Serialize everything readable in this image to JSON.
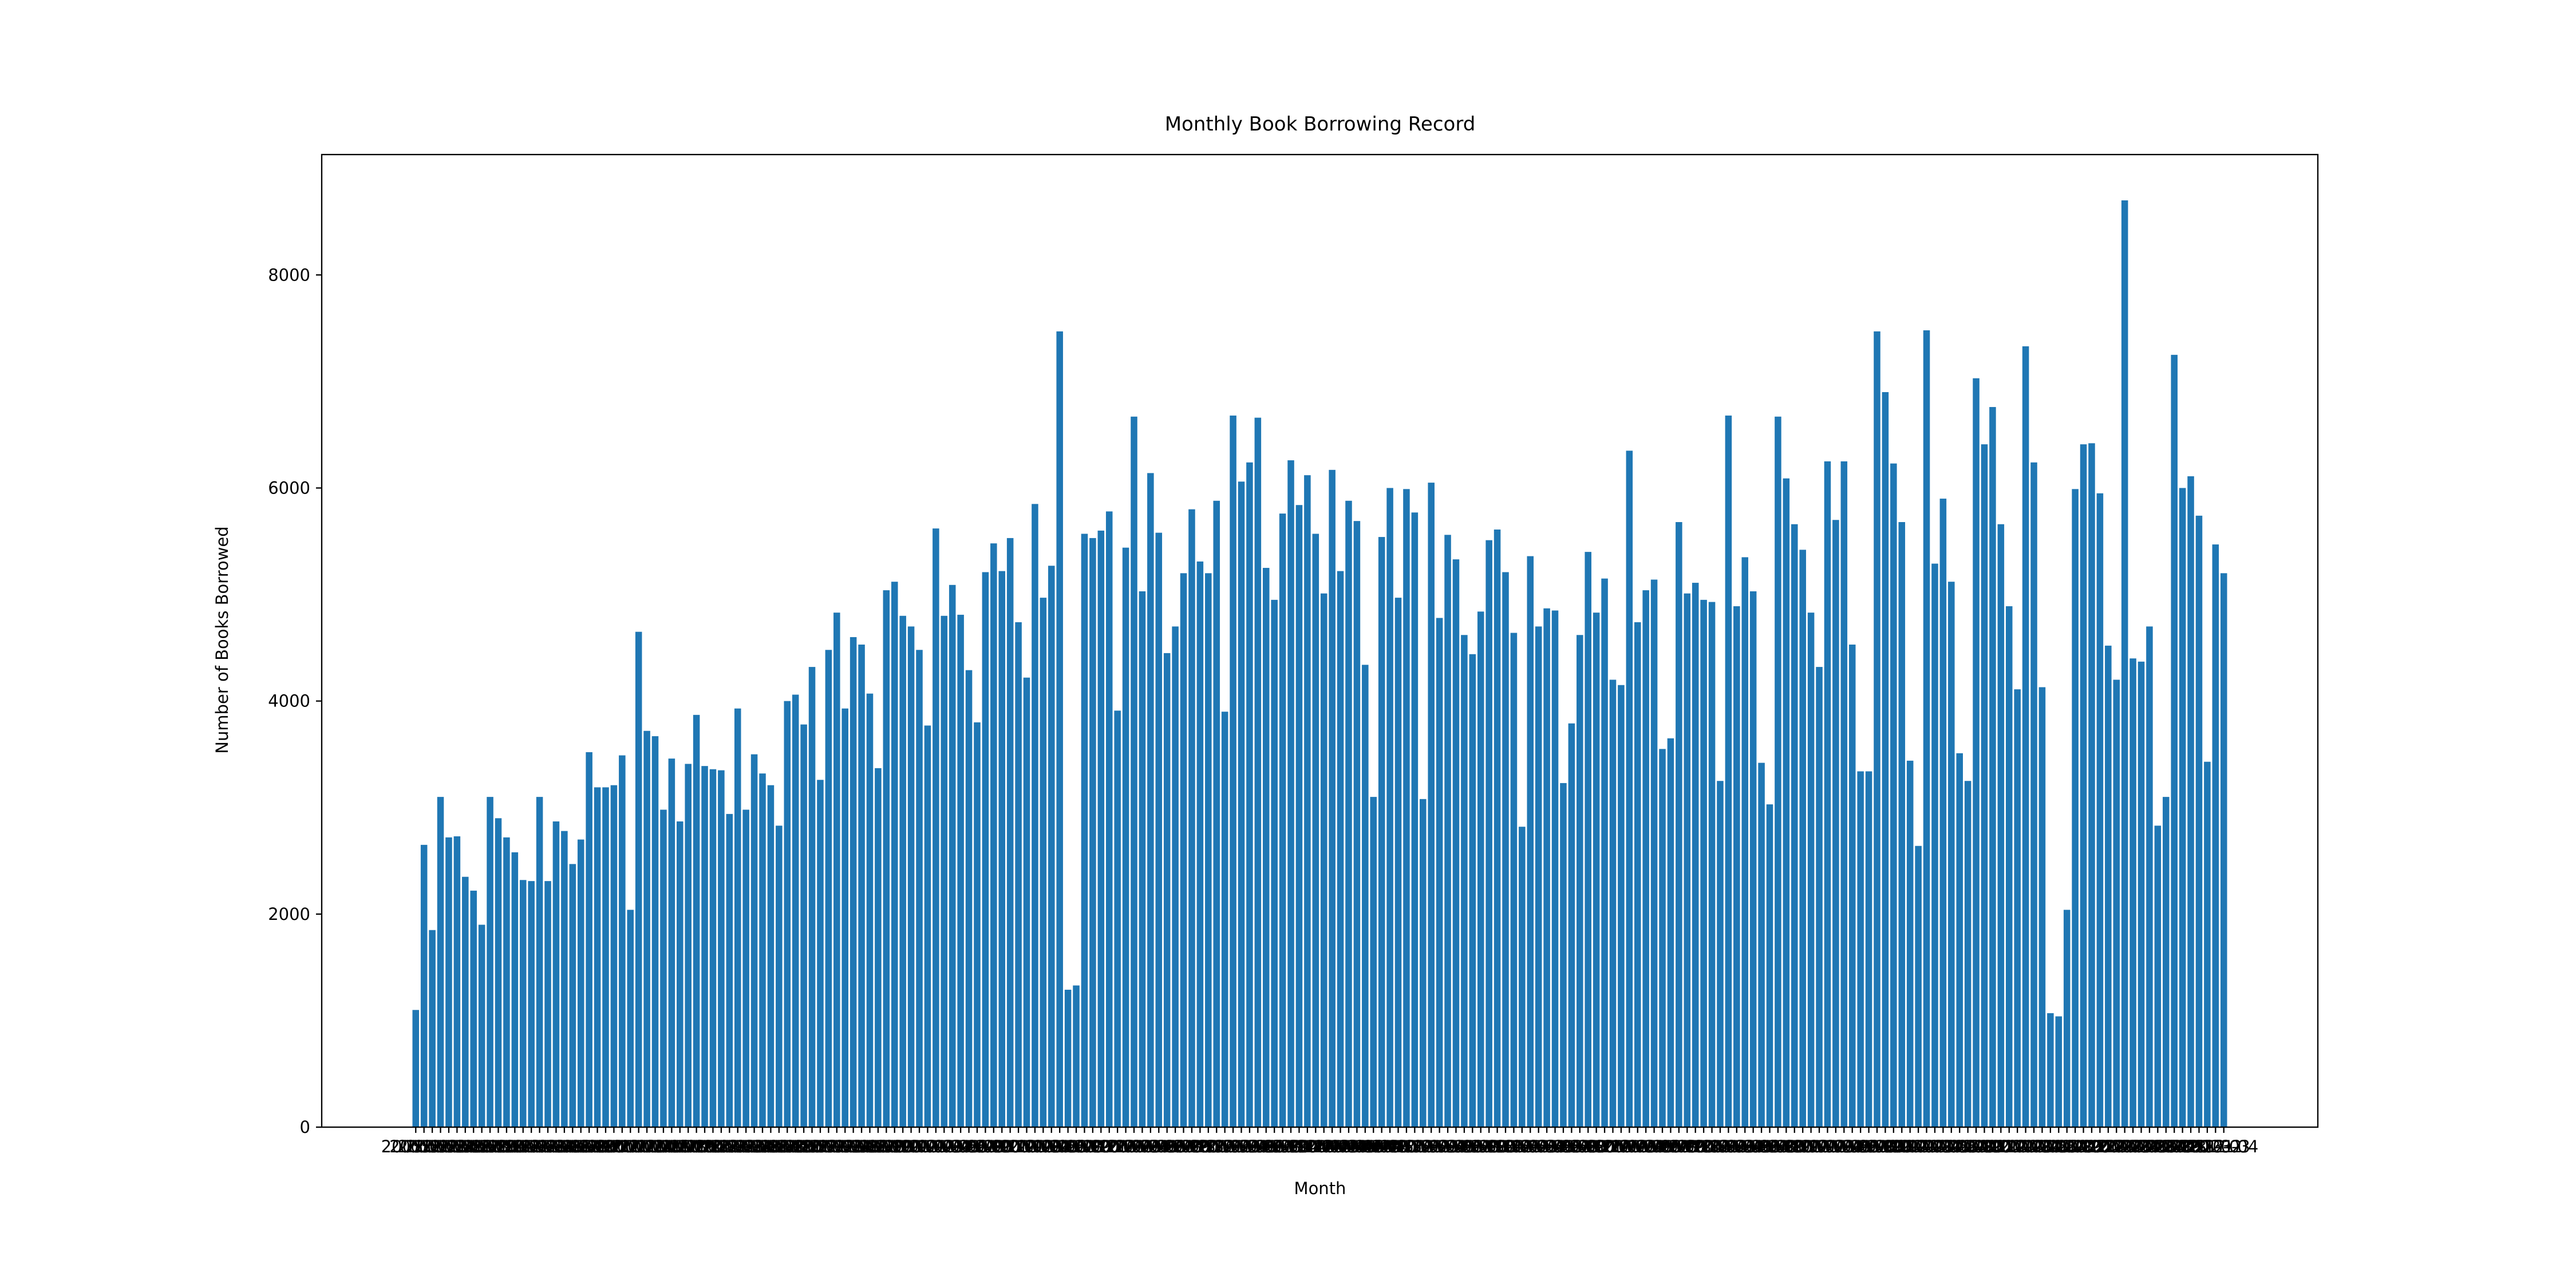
{
  "chart_data": {
    "type": "bar",
    "title": "Monthly Book Borrowing Record",
    "xlabel": "Month",
    "ylabel": "Number of Books Borrowed",
    "color": "#1f77b4",
    "categories": [
      "2005-01",
      "2005-02",
      "2005-03",
      "2005-04",
      "2005-05",
      "2005-06",
      "2005-07",
      "2005-08",
      "2005-09",
      "2005-10",
      "2005-11",
      "2005-12",
      "2006-01",
      "2006-02",
      "2006-03",
      "2006-04",
      "2006-05",
      "2006-06",
      "2006-07",
      "2006-08",
      "2006-09",
      "2006-10",
      "2006-11",
      "2006-12",
      "2007-01",
      "2007-02",
      "2007-03",
      "2007-04",
      "2007-05",
      "2007-06",
      "2007-07",
      "2007-08",
      "2007-09",
      "2007-10",
      "2007-11",
      "2007-12",
      "2008-01",
      "2008-02",
      "2008-03",
      "2008-04",
      "2008-05",
      "2008-06",
      "2008-07",
      "2008-08",
      "2008-09",
      "2008-10",
      "2008-11",
      "2008-12",
      "2009-01",
      "2009-02",
      "2009-03",
      "2009-04",
      "2009-05",
      "2009-06",
      "2009-07",
      "2009-08",
      "2009-09",
      "2009-10",
      "2009-11",
      "2009-12",
      "2010-01",
      "2010-02",
      "2010-03",
      "2010-04",
      "2010-05",
      "2010-06",
      "2010-07",
      "2010-08",
      "2010-09",
      "2010-10",
      "2010-11",
      "2010-12",
      "2011-01",
      "2011-02",
      "2011-03",
      "2011-04",
      "2011-05",
      "2011-06",
      "2011-07",
      "2011-08",
      "2011-09",
      "2011-10",
      "2011-11",
      "2011-12",
      "2012-01",
      "2012-02",
      "2012-03",
      "2012-04",
      "2012-05",
      "2012-06",
      "2012-07",
      "2012-08",
      "2012-09",
      "2012-10",
      "2012-11",
      "2012-12",
      "2013-01",
      "2013-02",
      "2013-03",
      "2013-04",
      "2013-05",
      "2013-06",
      "2013-07",
      "2013-08",
      "2013-09",
      "2013-10",
      "2013-11",
      "2013-12",
      "2014-01",
      "2014-02",
      "2014-03",
      "2014-04",
      "2014-05",
      "2014-06",
      "2014-07",
      "2014-08",
      "2014-09",
      "2014-10",
      "2014-11",
      "2014-12",
      "2015-01",
      "2015-02",
      "2015-03",
      "2015-04",
      "2015-05",
      "2015-06",
      "2015-07",
      "2015-08",
      "2015-09",
      "2015-10",
      "2015-11",
      "2015-12",
      "2016-01",
      "2016-02",
      "2016-03",
      "2016-04",
      "2016-05",
      "2016-06",
      "2016-07",
      "2016-08",
      "2016-09",
      "2016-10",
      "2016-11",
      "2016-12",
      "2017-01",
      "2017-02",
      "2017-03",
      "2017-04",
      "2017-05",
      "2017-06",
      "2017-07",
      "2017-08",
      "2017-09",
      "2017-10",
      "2017-11",
      "2017-12",
      "2018-01",
      "2018-02",
      "2018-03",
      "2018-04",
      "2018-05",
      "2018-06",
      "2018-07",
      "2018-08",
      "2018-09",
      "2018-10",
      "2018-11",
      "2018-12",
      "2019-01",
      "2019-02",
      "2019-03",
      "2019-04",
      "2019-05",
      "2019-06",
      "2019-07",
      "2019-08",
      "2019-09",
      "2019-10",
      "2019-11",
      "2019-12",
      "2020-01",
      "2020-02",
      "2020-03",
      "2020-04",
      "2020-05",
      "2020-06",
      "2020-07",
      "2020-08",
      "2020-09",
      "2020-10",
      "2020-11",
      "2020-12",
      "2021-01",
      "2021-02",
      "2021-03",
      "2021-04",
      "2021-05",
      "2021-06",
      "2021-07",
      "2021-08",
      "2021-09",
      "2021-10",
      "2021-11",
      "2021-12",
      "2022-01",
      "2022-02",
      "2022-03",
      "2022-04",
      "2022-05",
      "2022-06",
      "2022-07",
      "2022-08",
      "2022-09",
      "2022-10",
      "2022-11",
      "2022-12",
      "2023-01",
      "2023-02",
      "2023-03",
      "2023-04"
    ],
    "values": [
      1100,
      2650,
      1850,
      3100,
      2720,
      2730,
      2350,
      2220,
      1900,
      3100,
      2900,
      2720,
      2580,
      2320,
      2310,
      3100,
      2310,
      2870,
      2780,
      2470,
      2700,
      3520,
      3190,
      3190,
      3210,
      3490,
      2040,
      4650,
      3720,
      3670,
      2980,
      3460,
      2870,
      3410,
      3870,
      3390,
      3360,
      3350,
      2940,
      3930,
      2980,
      3500,
      3320,
      3210,
      2830,
      4000,
      4060,
      3780,
      4320,
      3260,
      4480,
      4830,
      3930,
      4600,
      4530,
      4070,
      3370,
      5040,
      5120,
      4800,
      4700,
      4480,
      3770,
      5620,
      4800,
      5090,
      4810,
      4290,
      3800,
      5210,
      5480,
      5220,
      5530,
      4740,
      4220,
      5850,
      4970,
      5270,
      7470,
      1290,
      1330,
      5570,
      5530,
      5600,
      5780,
      3910,
      5440,
      6670,
      5030,
      6140,
      5580,
      4450,
      4700,
      5200,
      5800,
      5310,
      5200,
      5880,
      3900,
      6680,
      6060,
      6240,
      6660,
      5250,
      4950,
      5760,
      6260,
      5840,
      6120,
      5570,
      5010,
      6170,
      5220,
      5880,
      5690,
      4340,
      3100,
      5540,
      6000,
      4970,
      5990,
      5770,
      3080,
      6050,
      4780,
      5560,
      5330,
      4620,
      4440,
      4840,
      5510,
      5610,
      5210,
      4640,
      2820,
      5360,
      4700,
      4870,
      4850,
      3230,
      3790,
      4620,
      5400,
      4830,
      5150,
      4200,
      4150,
      6350,
      4740,
      5040,
      5140,
      3550,
      3650,
      5680,
      5010,
      5110,
      4950,
      4930,
      3250,
      6680,
      4890,
      5350,
      5030,
      3420,
      3030,
      6670,
      6090,
      5660,
      5420,
      4830,
      4320,
      6250,
      5700,
      6250,
      4530,
      3340,
      3340,
      7470,
      6900,
      6230,
      5680,
      3440,
      2640,
      7480,
      5290,
      5900,
      5120,
      3510,
      3250,
      7030,
      6410,
      6760,
      5660,
      4890,
      4110,
      7330,
      6240,
      4130,
      1070,
      1040,
      2040,
      5990,
      6410,
      6420,
      5950,
      4520,
      4200,
      8700,
      4400,
      4370,
      4700,
      2830,
      3100,
      7250,
      6000,
      6110,
      5740,
      3430,
      5470,
      5200
    ],
    "ylim": [
      0,
      9130
    ],
    "yticks": [
      0,
      2000,
      4000,
      6000,
      8000
    ]
  }
}
